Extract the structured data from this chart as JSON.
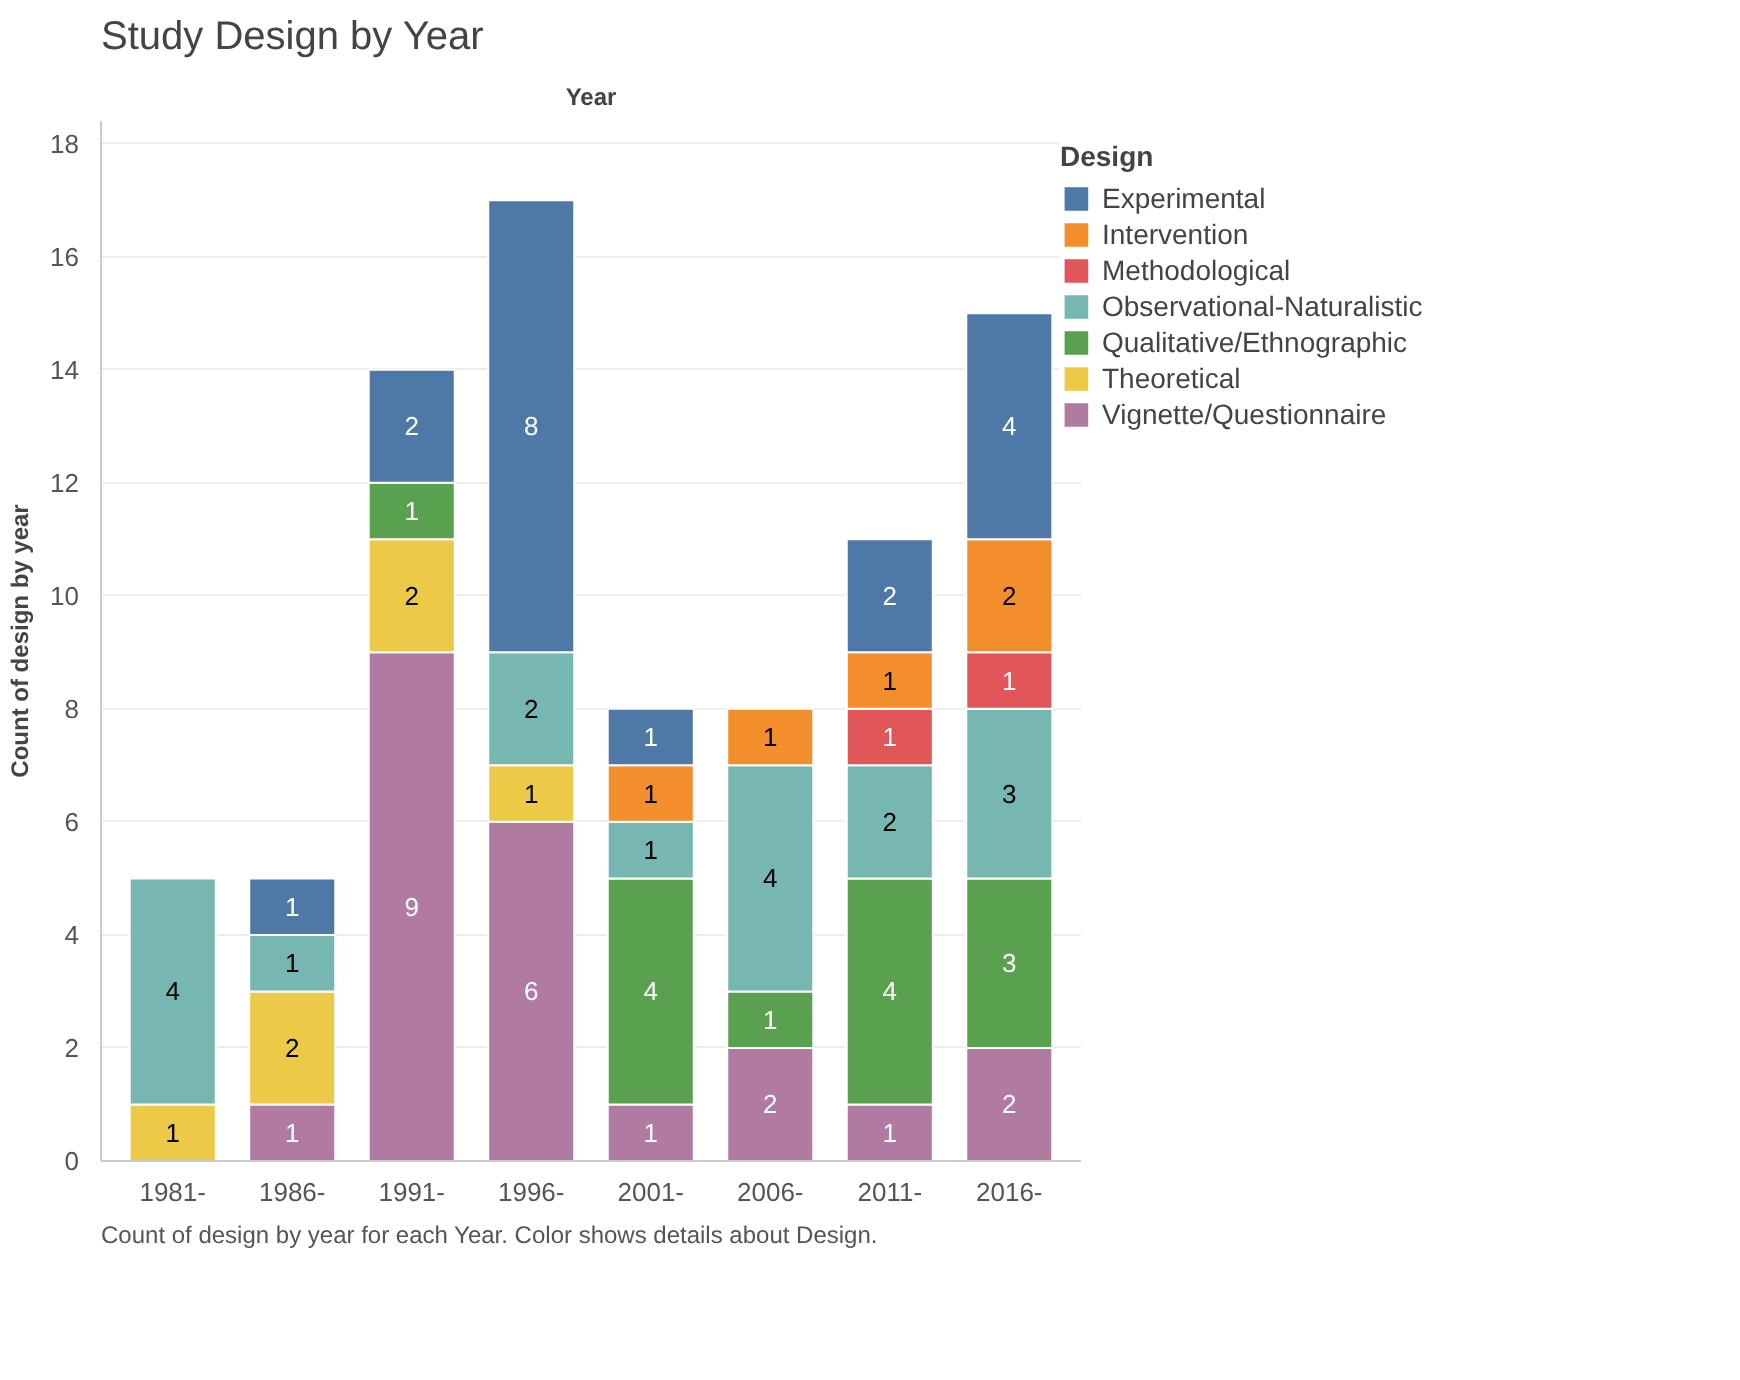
{
  "chart_data": {
    "type": "bar",
    "stacked": true,
    "title": "Study Design by Year",
    "xlabel": "Year",
    "ylabel": "Count of design by year",
    "legend_title": "Design",
    "categories": [
      "1981-",
      "1986-",
      "1991-",
      "1996-",
      "2001-",
      "2006-",
      "2011-",
      "2016-"
    ],
    "series": [
      {
        "name": "Vignette/Questionnaire",
        "color": "#b07aa1",
        "values": [
          null,
          1,
          9,
          6,
          1,
          2,
          1,
          2
        ]
      },
      {
        "name": "Theoretical",
        "color": "#edc948",
        "values": [
          1,
          2,
          2,
          1,
          null,
          null,
          null,
          null
        ]
      },
      {
        "name": "Qualitative/Ethnographic",
        "color": "#59a14f",
        "values": [
          null,
          null,
          1,
          null,
          4,
          1,
          4,
          3
        ]
      },
      {
        "name": "Observational-Naturalistic",
        "color": "#76b7b2",
        "values": [
          4,
          1,
          null,
          2,
          1,
          4,
          2,
          3
        ]
      },
      {
        "name": "Methodological",
        "color": "#e15759",
        "values": [
          null,
          null,
          null,
          null,
          null,
          null,
          1,
          1
        ]
      },
      {
        "name": "Intervention",
        "color": "#f28e2b",
        "values": [
          null,
          null,
          null,
          null,
          1,
          1,
          1,
          2
        ]
      },
      {
        "name": "Experimental",
        "color": "#4e79a7",
        "values": [
          null,
          1,
          2,
          8,
          1,
          null,
          2,
          4
        ]
      }
    ],
    "ylim": [
      0,
      18.4
    ],
    "yticks": [
      0,
      2,
      4,
      6,
      8,
      10,
      12,
      14,
      16,
      18
    ],
    "grid": "y",
    "legend": "right",
    "data_labels": true,
    "annotations": [
      "Count of design by year for each Year.  Color shows details about Design."
    ]
  }
}
